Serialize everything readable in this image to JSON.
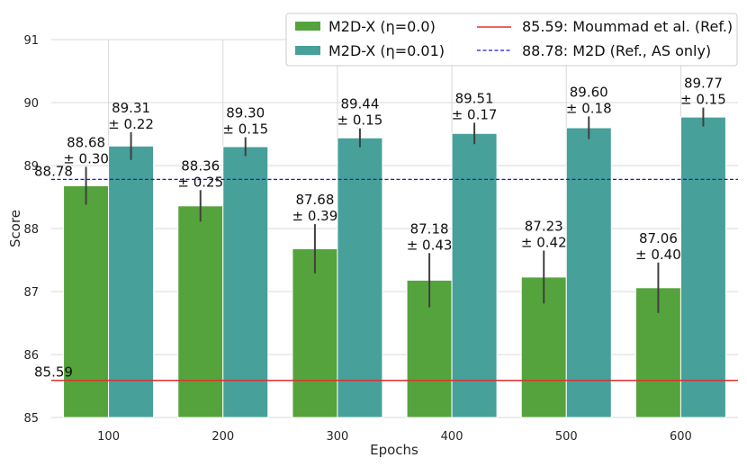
{
  "chart_data": {
    "type": "bar",
    "title": "",
    "xlabel": "Epochs",
    "ylabel": "Score",
    "ylim": [
      85,
      91
    ],
    "yticks": [
      85,
      86,
      87,
      88,
      89,
      90,
      91
    ],
    "grid": true,
    "categories": [
      "100",
      "200",
      "300",
      "400",
      "500",
      "600"
    ],
    "series": [
      {
        "name": "M2D-X (η=0.0)",
        "color": "#55a33c",
        "values": [
          88.68,
          88.36,
          87.68,
          87.18,
          87.23,
          87.06
        ],
        "errors": [
          0.3,
          0.25,
          0.39,
          0.43,
          0.42,
          0.4
        ],
        "labels": [
          [
            "88.68",
            "± 0.30"
          ],
          [
            "88.36",
            "± 0.25"
          ],
          [
            "87.68",
            "± 0.39"
          ],
          [
            "87.18",
            "± 0.43"
          ],
          [
            "87.23",
            "± 0.42"
          ],
          [
            "87.06",
            "± 0.40"
          ]
        ]
      },
      {
        "name": "M2D-X (η=0.01)",
        "color": "#47a09a",
        "values": [
          89.31,
          89.3,
          89.44,
          89.51,
          89.6,
          89.77
        ],
        "errors": [
          0.22,
          0.15,
          0.15,
          0.17,
          0.18,
          0.15
        ],
        "labels": [
          [
            "89.31",
            "± 0.22"
          ],
          [
            "89.30",
            "± 0.15"
          ],
          [
            "89.44",
            "± 0.15"
          ],
          [
            "89.51",
            "± 0.17"
          ],
          [
            "89.60",
            "± 0.18"
          ],
          [
            "89.77",
            "± 0.15"
          ]
        ]
      }
    ],
    "reference_lines": [
      {
        "value": 85.59,
        "label": "85.59",
        "legend": "85.59: Moummad et al. (Ref.)",
        "color": "#e03030",
        "style": "solid"
      },
      {
        "value": 88.78,
        "label": "88.78",
        "legend": "88.78: M2D (Ref., AS only)",
        "color": "#1a1ad0",
        "style": "dashed"
      }
    ],
    "legend_position": "top-right"
  }
}
